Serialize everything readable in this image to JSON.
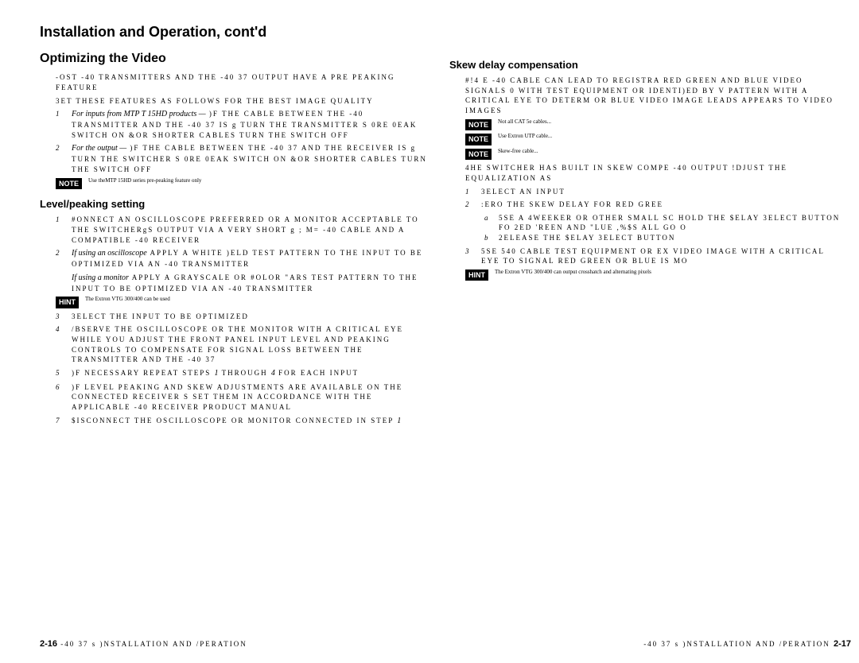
{
  "header": "Installation and Operation, cont'd",
  "left": {
    "title": "Optimizing the Video",
    "p1": "-OST -40 TRANSMITTERS AND THE -40 37 OUTPUT HAVE A PRE PEAKING FEATURE",
    "p2": "3ET THESE FEATURES AS FOLLOWS FOR THE BEST IMAGE QUALITY",
    "li1_italic": "For inputs from MTP T 15HD products —",
    "li1_rest": " )F THE CABLE BETWEEN THE -40 TRANSMITTER AND THE -40 37 IS   g TURN THE TRANSMITTER S 0RE 0EAK SWITCH ON &OR SHORTER CABLES TURN THE SWITCH OFF",
    "li2_italic": "For the output —",
    "li2_rest": " )F THE CABLE BETWEEN THE -40 37 AND THE RECEIVER IS   g TURN THE SWITCHER S 0RE 0EAK SWITCH ON &OR SHORTER CABLES TURN THE SWITCH OFF",
    "note1": "NOTE",
    "note1_text": "Use theMTP 15HD series pre-peaking feature only",
    "sub1": "Level/peaking setting",
    "s1_li1": "#ONNECT AN OSCILLOSCOPE PREFERRED OR A MONITOR ACCEPTABLE TO THE SWITCHERgS OUTPUT VIA A VERY SHORT   g ; M= -40 CABLE AND A COMPATIBLE -40 RECEIVER",
    "s1_li2_italic": "If using an oscilloscope",
    "s1_li2_rest": " APPLY A WHITE )ELD TEST PATTERN TO THE INPUT TO BE OPTIMIZED VIA AN -40 TRANSMITTER",
    "s1_li2b_italic": "If using a monitor",
    "s1_li2b_rest": " APPLY A GRAYSCALE OR #OLOR \"ARS TEST PATTERN TO THE INPUT TO BE OPTIMIZED VIA AN -40 TRANSMITTER",
    "hint1": "HINT",
    "hint1_text": "The Extron VTG 300/400 can be used",
    "s1_li3": "3ELECT THE INPUT TO BE OPTIMIZED",
    "s1_li4": "/BSERVE THE OSCILLOSCOPE OR THE MONITOR WITH A CRITICAL EYE WHILE YOU ADJUST THE FRONT PANEL INPUT LEVEL AND PEAKING CONTROLS TO COMPENSATE FOR SIGNAL LOSS BETWEEN THE TRANSMITTER AND THE -40 37",
    "s1_li5a": ")F NECESSARY REPEAT STEPS ",
    "s1_li5b": " THROUGH ",
    "s1_li5c": " FOR EACH INPUT",
    "s1_li6": ")F LEVEL PEAKING AND SKEW ADJUSTMENTS ARE AVAILABLE ON THE CONNECTED RECEIVER S  SET THEM IN ACCORDANCE WITH THE APPLICABLE -40 RECEIVER PRODUCT MANUAL",
    "s1_li7a": "$ISCONNECT THE OSCILLOSCOPE OR MONITOR CONNECTED IN STEP ",
    "s1_li7b": "1"
  },
  "right": {
    "sub": "Skew delay compensation",
    "p1": "#!4 E -40 CABLE CAN LEAD TO REGISTRA RED GREEN AND BLUE VIDEO SIGNALS 0 WITH TEST EQUIPMENT OR IDENTI)ED BY V PATTERN WITH A CRITICAL EYE TO DETERM OR BLUE VIDEO IMAGE LEADS APPEARS TO VIDEO IMAGES",
    "notetext1": "Not all CAT 5e cables...",
    "notetext2": "Use Extron UTP cable...",
    "notetext3": "Skew-free cable...",
    "p2": "4HE SWITCHER HAS BUILT IN SKEW COMPE -40 OUTPUT !DJUST THE EQUALIZATION AS",
    "li1": "3ELECT AN INPUT",
    "li2": ":ERO THE SKEW DELAY FOR RED GREE",
    "li2a": "5SE A 4WEEKER OR OTHER SMALL SC HOLD THE $ELAY 3ELECT BUTTON FO 2ED 'REEN AND \"LUE ,%$S ALL GO O",
    "li2b": "2ELEASE THE $ELAY 3ELECT BUTTON",
    "li3": "5SE 540 CABLE TEST EQUIPMENT OR EX VIDEO IMAGE WITH A CRITICAL EYE TO SIGNAL RED GREEN OR BLUE IS MO",
    "hinttext": "The Extron VTG 300/400 can output crosshatch and alternating pixels"
  },
  "footer": {
    "left_pn": "2-16",
    "left_text": " -40 37 s )NSTALLATION AND /PERATION",
    "right_text": "-40 37 s )NSTALLATION AND /PERATION",
    "right_pn": "2-17"
  }
}
